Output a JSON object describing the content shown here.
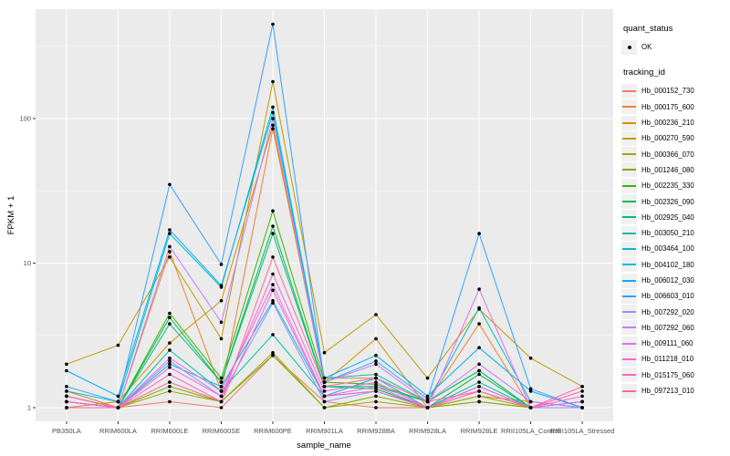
{
  "legend": {
    "quant_status_title": "quant_status",
    "ok_label": "OK",
    "tracking_title": "tracking_id"
  },
  "chart_data": {
    "type": "line",
    "title": "",
    "xlabel": "sample_name",
    "ylabel": "FPKM + 1",
    "y_scale": "log10",
    "y_ticks": [
      1,
      10,
      100
    ],
    "ylim": [
      1,
      560
    ],
    "grid": "on",
    "legend_position": "right",
    "panel_bg": "#EBEBEB",
    "grid_color": "#FFFFFF",
    "point_color": "#000000",
    "point_shape_meaning": "quant_status OK",
    "x_categories": [
      "PB350LA",
      "RRIM600LA",
      "RRIM600LE",
      "RRIM600SE",
      "RRIM600PE",
      "RRIM901LA",
      "RRIM928BA",
      "RRIM928LA",
      "RRIM928LE",
      "RRII105LA_Control",
      "RRII105LA_Stressed"
    ],
    "series": [
      {
        "name": "Hb_000152_730",
        "color": "#F8766D",
        "values": [
          1.2,
          1.0,
          1.1,
          1.0,
          2.3,
          1.1,
          1.0,
          1.0,
          1.1,
          1.0,
          1.0
        ]
      },
      {
        "name": "Hb_000175_600",
        "color": "#EA8331",
        "values": [
          1.3,
          1.0,
          12,
          1.3,
          85,
          1.6,
          1.6,
          1.1,
          3.8,
          1.0,
          1.0
        ]
      },
      {
        "name": "Hb_000236_210",
        "color": "#D89000",
        "values": [
          1.0,
          1.1,
          2.8,
          5.5,
          90,
          1.5,
          3.0,
          1.0,
          1.2,
          1.1,
          1.0
        ]
      },
      {
        "name": "Hb_000270_590",
        "color": "#C09B00",
        "values": [
          2.0,
          2.7,
          11,
          3.0,
          180,
          2.4,
          4.4,
          1.6,
          4.8,
          2.2,
          1.4
        ]
      },
      {
        "name": "Hb_000366_070",
        "color": "#A3A500",
        "values": [
          1.1,
          1.0,
          1.3,
          1.1,
          2.4,
          1.0,
          1.1,
          1.0,
          1.2,
          1.0,
          1.1
        ]
      },
      {
        "name": "Hb_001246_080",
        "color": "#7CAE00",
        "values": [
          1.0,
          1.0,
          1.4,
          1.1,
          2.3,
          1.0,
          1.2,
          1.0,
          1.1,
          1.0,
          1.0
        ]
      },
      {
        "name": "Hb_002235_330",
        "color": "#39B600",
        "values": [
          1.1,
          1.0,
          4.5,
          1.6,
          23,
          1.5,
          1.45,
          1.1,
          1.8,
          1.0,
          1.1
        ]
      },
      {
        "name": "Hb_002326_090",
        "color": "#00BB4E",
        "values": [
          1.0,
          1.0,
          4.2,
          1.5,
          18,
          1.4,
          1.35,
          1.0,
          1.7,
          1.0,
          1.0
        ]
      },
      {
        "name": "Hb_002925_040",
        "color": "#00BF7D",
        "values": [
          1.1,
          1.0,
          3.8,
          1.5,
          16,
          1.4,
          1.4,
          1.1,
          1.8,
          1.0,
          1.0
        ]
      },
      {
        "name": "Hb_003050_210",
        "color": "#00C1A3",
        "values": [
          1.0,
          1.0,
          2.5,
          1.3,
          3.2,
          1.2,
          1.3,
          1.0,
          1.5,
          1.0,
          1.0
        ]
      },
      {
        "name": "Hb_003464_100",
        "color": "#00BFC4",
        "values": [
          1.3,
          1.1,
          16,
          6.8,
          120,
          1.6,
          1.7,
          1.1,
          4.9,
          1.1,
          1.0
        ]
      },
      {
        "name": "Hb_004102_180",
        "color": "#00BAE0",
        "values": [
          1.2,
          1.0,
          2.0,
          1.4,
          5.5,
          1.2,
          1.6,
          1.0,
          1.4,
          1.0,
          1.0
        ]
      },
      {
        "name": "Hb_006012_030",
        "color": "#00B0F6",
        "values": [
          1.8,
          1.2,
          17,
          7.0,
          110,
          1.6,
          2.3,
          1.2,
          2.6,
          1.3,
          1.0
        ]
      },
      {
        "name": "Hb_006603_010",
        "color": "#35A2FF",
        "values": [
          1.4,
          1.1,
          35,
          9.8,
          450,
          1.5,
          2.1,
          1.15,
          16,
          1.35,
          1.0
        ]
      },
      {
        "name": "Hb_007292_020",
        "color": "#9590FF",
        "values": [
          1.0,
          1.0,
          2.1,
          1.2,
          5.3,
          1.1,
          1.3,
          1.0,
          1.3,
          1.0,
          1.0
        ]
      },
      {
        "name": "Hb_007292_060",
        "color": "#C77CFF",
        "values": [
          1.1,
          1.0,
          13,
          3.9,
          100,
          1.5,
          2.0,
          1.1,
          2.0,
          1.1,
          1.0
        ]
      },
      {
        "name": "Hb_009111_060",
        "color": "#E76BF3",
        "values": [
          1.0,
          1.0,
          2.2,
          1.3,
          7.1,
          1.2,
          1.4,
          1.0,
          6.6,
          1.0,
          1.1
        ]
      },
      {
        "name": "Hb_011218_010",
        "color": "#FA62DB",
        "values": [
          1.1,
          1.0,
          1.9,
          1.2,
          8.4,
          1.3,
          1.5,
          1.0,
          1.4,
          1.0,
          1.2
        ]
      },
      {
        "name": "Hb_015175_060",
        "color": "#FF61CC",
        "values": [
          1.0,
          1.0,
          1.7,
          1.1,
          6.5,
          1.2,
          1.3,
          1.0,
          1.3,
          1.0,
          1.4
        ]
      },
      {
        "name": "Hb_097213_010",
        "color": "#FF6A98",
        "values": [
          1.2,
          1.0,
          1.5,
          1.1,
          11,
          1.4,
          1.6,
          1.1,
          1.3,
          1.0,
          1.3
        ]
      }
    ]
  }
}
